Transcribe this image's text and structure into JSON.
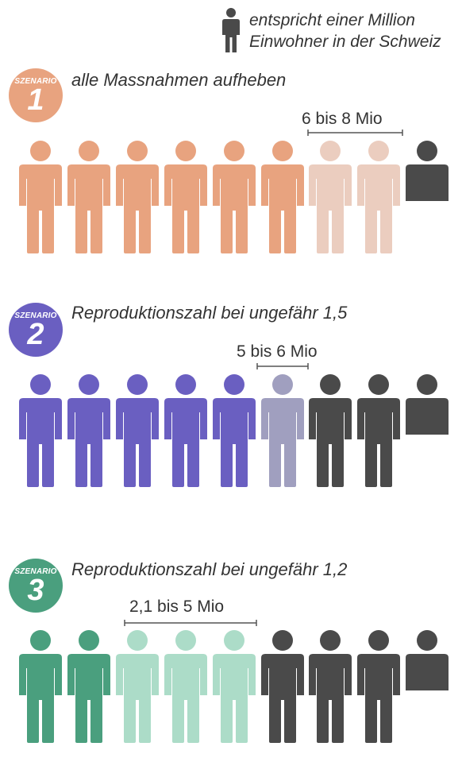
{
  "legend": {
    "icon": "person-icon",
    "line1": "entspricht einer Million",
    "line2": "Einwohner in der Schweiz",
    "icon_color": "#4a4a4a"
  },
  "scenarios": [
    {
      "badge_word": "SZENARIO",
      "number": "1",
      "title": "alle Massnahmen aufheben",
      "range_label": "6 bis 8 Mio",
      "color": "#e8a37f",
      "light_color": "#ebcdbf",
      "icons": [
        "full",
        "full",
        "full",
        "full",
        "full",
        "full",
        "light",
        "light",
        "dark-half"
      ]
    },
    {
      "badge_word": "SZENARIO",
      "number": "2",
      "title": "Reproduktionszahl bei ungefähr 1,5",
      "range_label": "5 bis 6 Mio",
      "color": "#6a5fc1",
      "light_color": "#a09fbf",
      "icons": [
        "full",
        "full",
        "full",
        "full",
        "full",
        "light",
        "dark",
        "dark",
        "dark-half"
      ]
    },
    {
      "badge_word": "SZENARIO",
      "number": "3",
      "title": "Reproduktionszahl bei ungefähr 1,2",
      "range_label": "2,1 bis 5 Mio",
      "color": "#4a9f7e",
      "light_color": "#acdcc8",
      "icons": [
        "full",
        "full",
        "light",
        "light",
        "light",
        "dark",
        "dark",
        "dark",
        "dark-half"
      ]
    }
  ],
  "dark_color": "#4a4a4a"
}
